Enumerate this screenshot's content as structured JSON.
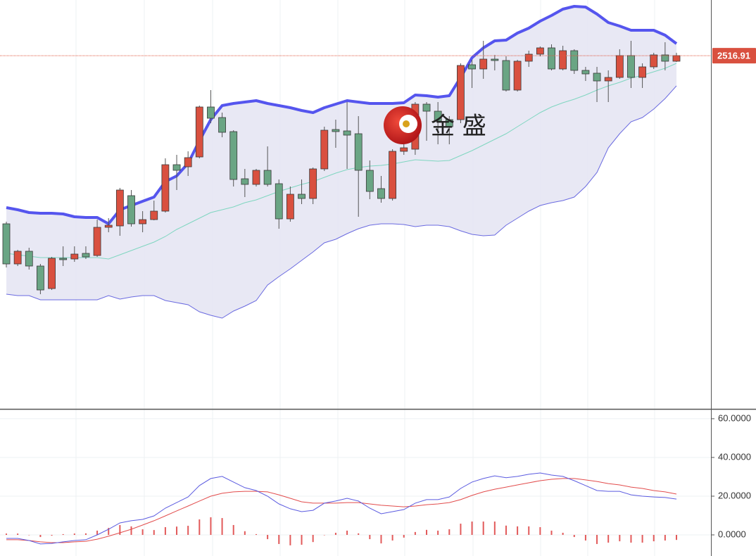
{
  "chart_data": [
    {
      "type": "candlestick",
      "watermark": "金 盛",
      "ylim": [
        2266.5,
        2556.5
      ],
      "last_price": 2516.91,
      "last_price_label": "2516.91",
      "up_color": "#d9503f",
      "down_color": "#6aa584",
      "band_colors": {
        "upper": "#5555ee",
        "middle": "#7fd6c0",
        "lower": "#6a6ae0",
        "fill": "#e4e4f2"
      },
      "open": [
        2397.5,
        2369,
        2378,
        2367.5,
        2351.5,
        2373,
        2372.5,
        2376.5,
        2375,
        2395,
        2396,
        2417.5,
        2397.5,
        2400.5,
        2406.5,
        2439.5,
        2438,
        2445,
        2480.5,
        2473,
        2463,
        2429.5,
        2425.5,
        2435.5,
        2426,
        2401,
        2418.5,
        2415.5,
        2436.5,
        2464.5,
        2463.5,
        2461.5,
        2435.5,
        2422.5,
        2415.5,
        2449,
        2450.5,
        2482.5,
        2477.5,
        2471.5,
        2471.5,
        2510.5,
        2507.5,
        2514.5,
        2513.5,
        2492.5,
        2513,
        2518,
        2522.5,
        2507.5,
        2520.5,
        2506.5,
        2504.5,
        2499,
        2501.5,
        2517,
        2501.5,
        2509,
        2517.5,
        2513
      ],
      "high": [
        2399,
        2379,
        2380.5,
        2369,
        2374,
        2381.5,
        2381.5,
        2381.5,
        2400.5,
        2401.5,
        2423,
        2421.5,
        2406.5,
        2414,
        2444,
        2446.5,
        2449,
        2481.5,
        2492.5,
        2476.5,
        2464,
        2436.5,
        2436.5,
        2452.5,
        2429,
        2424,
        2429,
        2437.5,
        2466.5,
        2471.5,
        2484,
        2474,
        2442.5,
        2431.5,
        2450.5,
        2461.5,
        2484,
        2484,
        2484,
        2474,
        2511.5,
        2514,
        2527.5,
        2517.5,
        2516.5,
        2514,
        2520.5,
        2523.5,
        2525,
        2524,
        2521.5,
        2509,
        2509,
        2506.5,
        2521.5,
        2527.5,
        2511.5,
        2519,
        2526.5,
        2519
      ],
      "low": [
        2366.5,
        2367.5,
        2365,
        2347.5,
        2350.5,
        2367.5,
        2370.5,
        2372.5,
        2374,
        2391.5,
        2389,
        2395.5,
        2391.5,
        2400,
        2405.5,
        2421.5,
        2431.5,
        2444,
        2469,
        2459,
        2424,
        2416.5,
        2424,
        2424,
        2394,
        2399,
        2411.5,
        2411.5,
        2435,
        2451.5,
        2436.5,
        2402.5,
        2415,
        2412.5,
        2414,
        2446.5,
        2446.5,
        2456.5,
        2454,
        2454,
        2469,
        2494,
        2500.5,
        2506.5,
        2491.5,
        2491.5,
        2509,
        2516.5,
        2506.5,
        2506.5,
        2504,
        2499,
        2484,
        2484,
        2500.5,
        2494,
        2494,
        2507.5,
        2506.5,
        2512.5
      ],
      "close": [
        2369,
        2378,
        2367.5,
        2350.5,
        2373,
        2372,
        2376,
        2374,
        2395,
        2396.5,
        2421.5,
        2397.5,
        2400.5,
        2406.5,
        2439.5,
        2435.5,
        2444.5,
        2480.5,
        2472.5,
        2462.5,
        2429,
        2425.5,
        2435.5,
        2425.5,
        2401,
        2418.5,
        2415.5,
        2436.5,
        2464,
        2463,
        2460.5,
        2435.5,
        2420.5,
        2415.5,
        2449,
        2451.5,
        2482.5,
        2477.5,
        2470.5,
        2466.5,
        2510,
        2507.5,
        2514.5,
        2513.5,
        2492.5,
        2513,
        2518,
        2522.5,
        2507.5,
        2520.5,
        2506.5,
        2504,
        2499,
        2501.5,
        2517,
        2501.5,
        2509,
        2517.5,
        2513,
        2517
      ],
      "upper": [
        2409,
        2407.5,
        2405.5,
        2405,
        2405,
        2404.5,
        2402.5,
        2402,
        2402,
        2397.5,
        2407.5,
        2410.5,
        2413.5,
        2416.5,
        2427.5,
        2431.5,
        2440.5,
        2456.5,
        2471.5,
        2481.5,
        2483,
        2484,
        2485,
        2483,
        2481.5,
        2480,
        2478,
        2476.5,
        2480,
        2482.5,
        2485,
        2484,
        2483,
        2483,
        2483,
        2483.5,
        2489,
        2488.5,
        2487.5,
        2488.5,
        2501.5,
        2515.5,
        2522.5,
        2527.5,
        2528,
        2533,
        2536.5,
        2541.5,
        2545.5,
        2550,
        2552,
        2551.5,
        2546.5,
        2540.5,
        2538,
        2535,
        2535,
        2535,
        2531.5,
        2525.5
      ],
      "middle": [
        2376.5,
        2375.5,
        2374.5,
        2373.5,
        2373.5,
        2373.5,
        2373.5,
        2373.5,
        2373.5,
        2372.5,
        2375.5,
        2378.5,
        2381.5,
        2384.5,
        2388.5,
        2393.5,
        2397.5,
        2401.5,
        2405.5,
        2407.5,
        2409.5,
        2412.5,
        2414.5,
        2417.5,
        2420.5,
        2423,
        2425.5,
        2427.5,
        2430.5,
        2433.5,
        2436,
        2437.5,
        2438.5,
        2439,
        2440,
        2441.5,
        2443,
        2442.5,
        2442,
        2442.5,
        2446,
        2449.5,
        2453.5,
        2457.5,
        2461.5,
        2466.5,
        2471.5,
        2476.5,
        2480.5,
        2483.5,
        2486,
        2489,
        2492.5,
        2495.5,
        2498,
        2501,
        2503,
        2505.5,
        2508,
        2511.5
      ],
      "lower": [
        2347.5,
        2346.5,
        2346.5,
        2343.5,
        2343.5,
        2343.5,
        2343.5,
        2343.5,
        2343.5,
        2346.5,
        2344,
        2345.5,
        2346.5,
        2346.5,
        2343,
        2341.5,
        2340,
        2335,
        2332.5,
        2330.5,
        2335.5,
        2339,
        2343,
        2354,
        2360,
        2365.5,
        2371.5,
        2377.5,
        2384,
        2386.5,
        2390.5,
        2394,
        2396.5,
        2397.5,
        2397.5,
        2397,
        2395.5,
        2396.5,
        2396.5,
        2395.5,
        2392.5,
        2390,
        2389,
        2389.5,
        2396.5,
        2401.5,
        2406.5,
        2410.5,
        2412.5,
        2414,
        2416.5,
        2424,
        2434,
        2451.5,
        2461.5,
        2470,
        2473,
        2479,
        2486.5,
        2495.5
      ]
    },
    {
      "type": "macd",
      "ylim": [
        -10.9,
        64.7
      ],
      "yticks": [
        {
          "value": 60,
          "label": "60.0000"
        },
        {
          "value": 40,
          "label": "40.0000"
        },
        {
          "value": 20,
          "label": "20.0000"
        },
        {
          "value": 0,
          "label": "0.0000"
        }
      ],
      "grid": true,
      "colors": {
        "macd": "#5b5be0",
        "signal": "#e24c4c",
        "histogram": "#e25a5a"
      },
      "macd": [
        -1.8,
        -1.8,
        -2.9,
        -4.7,
        -4.4,
        -3.6,
        -2.9,
        -2.5,
        0,
        2.9,
        6.2,
        7.3,
        8.0,
        9.8,
        13.8,
        16.7,
        19.6,
        25.5,
        29.1,
        30.2,
        27.3,
        24.4,
        22.9,
        20.0,
        16.0,
        13.5,
        12.0,
        12.7,
        16.4,
        17.5,
        18.9,
        17.5,
        13.8,
        10.9,
        12.0,
        13.1,
        16.4,
        18.2,
        18.2,
        19.6,
        24.0,
        27.3,
        29.1,
        30.5,
        29.5,
        30.2,
        31.3,
        32.0,
        30.9,
        30.2,
        28.0,
        25.5,
        22.9,
        22.5,
        22.5,
        20.7,
        20.0,
        19.6,
        19.3,
        18.5
      ],
      "signal": [
        -2.5,
        -2.5,
        -2.9,
        -3.6,
        -4.0,
        -4.0,
        -3.6,
        -3.3,
        -2.2,
        -0.7,
        1.1,
        2.9,
        5.1,
        7.3,
        9.8,
        12.4,
        14.9,
        17.5,
        20.0,
        21.5,
        22.2,
        22.5,
        22.5,
        22.2,
        20.7,
        18.9,
        17.1,
        16.4,
        16.4,
        16.4,
        16.7,
        16.7,
        16.0,
        15.3,
        14.9,
        14.5,
        14.9,
        15.6,
        16.0,
        16.7,
        18.2,
        20.4,
        22.2,
        23.6,
        24.7,
        25.8,
        26.9,
        28.0,
        28.7,
        29.1,
        29.1,
        28.4,
        27.6,
        26.5,
        25.8,
        24.7,
        24.0,
        22.9,
        22.2,
        21.1
      ],
      "histogram": [
        0.7,
        0.7,
        0,
        -1.1,
        -0.4,
        0.4,
        0.7,
        0.8,
        2.2,
        3.6,
        5.1,
        4.4,
        2.9,
        2.5,
        4.0,
        4.3,
        4.7,
        8.0,
        9.1,
        8.7,
        5.1,
        1.9,
        0.4,
        -2.2,
        -4.7,
        -5.4,
        -5.1,
        -3.7,
        0,
        1.1,
        2.2,
        0.8,
        -2.2,
        -4.4,
        -2.9,
        -1.4,
        1.5,
        2.6,
        2.2,
        2.9,
        5.8,
        6.9,
        6.9,
        6.9,
        4.8,
        4.4,
        4.4,
        4.0,
        2.2,
        1.1,
        -1.1,
        -2.9,
        -4.7,
        -4.0,
        -3.3,
        -4.0,
        -4.0,
        -3.3,
        -2.9,
        -2.6
      ]
    }
  ]
}
